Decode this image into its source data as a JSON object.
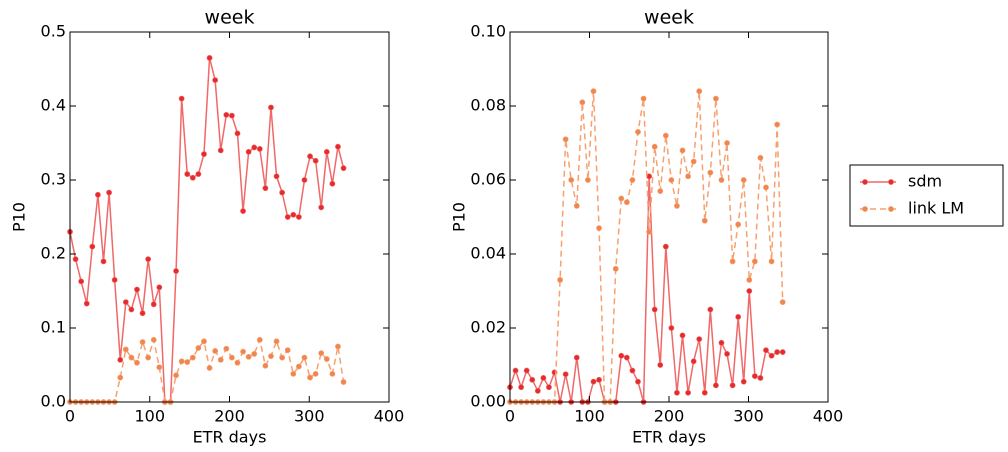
{
  "chart_data": [
    {
      "type": "line",
      "title": "week",
      "xlabel": "ETR days",
      "ylabel": "P10",
      "x": [
        0,
        7,
        14,
        21,
        28,
        35,
        42,
        49,
        56,
        63,
        70,
        77,
        84,
        91,
        98,
        105,
        112,
        119,
        126,
        133,
        140,
        147,
        154,
        161,
        168,
        175,
        182,
        189,
        196,
        203,
        210,
        217,
        224,
        231,
        238,
        245,
        252,
        259,
        266,
        273,
        280,
        287,
        294,
        301,
        308,
        315,
        322,
        329,
        336,
        343
      ],
      "series": [
        {
          "name": "sdm",
          "color": "#f06868",
          "marker_color": "#e52b2b",
          "linestyle": "solid",
          "values": [
            0.23,
            0.193,
            0.163,
            0.133,
            0.21,
            0.28,
            0.19,
            0.283,
            0.165,
            0.057,
            0.135,
            0.125,
            0.152,
            0.12,
            0.193,
            0.132,
            0.155,
            0,
            0,
            0.177,
            0.41,
            0.308,
            0.303,
            0.308,
            0.335,
            0.465,
            0.435,
            0.34,
            0.388,
            0.387,
            0.363,
            0.258,
            0.338,
            0.344,
            0.342,
            0.289,
            0.398,
            0.305,
            0.283,
            0.25,
            0.253,
            0.25,
            0.3,
            0.332,
            0.326,
            0.263,
            0.338,
            0.295,
            0.345,
            0.316
          ]
        },
        {
          "name": "link LM",
          "color": "#f7a070",
          "marker_color": "#f0864f",
          "linestyle": "dashed",
          "values": [
            0,
            0,
            0,
            0,
            0,
            0,
            0,
            0,
            0,
            0.033,
            0.071,
            0.06,
            0.053,
            0.081,
            0.06,
            0.084,
            0.047,
            0,
            0,
            0.036,
            0.055,
            0.054,
            0.06,
            0.073,
            0.082,
            0.046,
            0.069,
            0.057,
            0.072,
            0.06,
            0.053,
            0.068,
            0.061,
            0.065,
            0.084,
            0.049,
            0.062,
            0.082,
            0.06,
            0.07,
            0.038,
            0.048,
            0.06,
            0.033,
            0.038,
            0.066,
            0.058,
            0.038,
            0.075,
            0.027
          ]
        }
      ],
      "xlim": [
        0,
        400
      ],
      "xticks": [
        0,
        100,
        200,
        300,
        400
      ],
      "ylim": [
        0,
        0.5
      ],
      "yticks": [
        {
          "value": 0,
          "label": "0.0"
        },
        0.1,
        0.2,
        0.3,
        0.4,
        0.5
      ]
    },
    {
      "type": "line",
      "title": "week",
      "xlabel": "ETR days",
      "ylabel": "P10",
      "x": [
        0,
        7,
        14,
        21,
        28,
        35,
        42,
        49,
        56,
        63,
        70,
        77,
        84,
        91,
        98,
        105,
        112,
        119,
        126,
        133,
        140,
        147,
        154,
        161,
        168,
        175,
        182,
        189,
        196,
        203,
        210,
        217,
        224,
        231,
        238,
        245,
        252,
        259,
        266,
        273,
        280,
        287,
        294,
        301,
        308,
        315,
        322,
        329,
        336,
        343
      ],
      "series": [
        {
          "name": "sdm",
          "color": "#f06868",
          "marker_color": "#e52b2b",
          "linestyle": "solid",
          "values": [
            0.004,
            0.0085,
            0.004,
            0.0085,
            0.006,
            0.003,
            0.0065,
            0.004,
            0.008,
            0,
            0.0075,
            0,
            0.012,
            0,
            0,
            0.0055,
            0.006,
            0,
            0,
            0,
            0.0125,
            0.012,
            0.0085,
            0.0055,
            0,
            0.061,
            0.025,
            0.01,
            0.042,
            0.02,
            0.0025,
            0.018,
            0.0025,
            0.011,
            0.017,
            0.0025,
            0.025,
            0.0045,
            0.016,
            0.013,
            0.0045,
            0.023,
            0.0055,
            0.03,
            0.007,
            0.0065,
            0.014,
            0.0125,
            0.0135,
            0.0135
          ]
        },
        {
          "name": "link LM",
          "color": "#f7a070",
          "marker_color": "#f0864f",
          "linestyle": "dashed",
          "values": [
            0,
            0,
            0,
            0,
            0,
            0,
            0,
            0,
            0,
            0.033,
            0.071,
            0.06,
            0.053,
            0.081,
            0.06,
            0.084,
            0.047,
            0,
            0,
            0.036,
            0.055,
            0.054,
            0.06,
            0.073,
            0.082,
            0.046,
            0.069,
            0.057,
            0.072,
            0.06,
            0.053,
            0.068,
            0.061,
            0.065,
            0.084,
            0.049,
            0.062,
            0.082,
            0.06,
            0.07,
            0.038,
            0.048,
            0.06,
            0.033,
            0.038,
            0.066,
            0.058,
            0.038,
            0.075,
            0.027
          ]
        }
      ],
      "xlim": [
        0,
        400
      ],
      "xticks": [
        0,
        100,
        200,
        300,
        400
      ],
      "ylim": [
        0,
        0.1
      ],
      "yticks": [
        {
          "value": 0,
          "label": "0.00"
        },
        {
          "value": 0.02,
          "label": "0.02"
        },
        {
          "value": 0.04,
          "label": "0.04"
        },
        {
          "value": 0.06,
          "label": "0.06"
        },
        {
          "value": 0.08,
          "label": "0.08"
        },
        {
          "value": 0.1,
          "label": "0.10"
        }
      ],
      "legend": "outside-right"
    }
  ]
}
